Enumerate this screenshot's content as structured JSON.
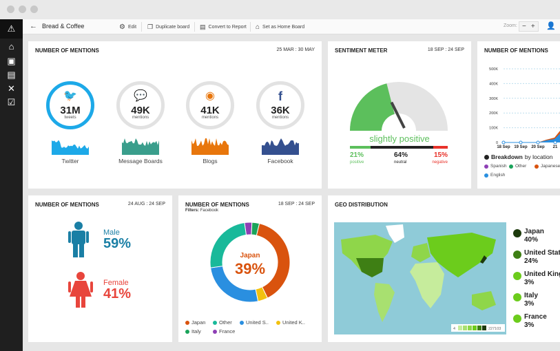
{
  "toolbar": {
    "back": "←",
    "title": "Bread & Coffee",
    "edit": "Edit",
    "duplicate": "Duplicate board",
    "convert": "Convert to Report",
    "home": "Set as Home Board",
    "zoom_label": "Zoom:",
    "zoom_out": "−",
    "zoom_in": "+"
  },
  "mentions": {
    "title": "NUMBER OF MENTIONS",
    "date": "25 MAR : 30 MAY",
    "channels": [
      {
        "name": "Twitter",
        "value": "31M",
        "unit": "tweets",
        "color": "#1da9e8",
        "icon": "twitter-icon"
      },
      {
        "name": "Message Boards",
        "value": "49K",
        "unit": "mentions",
        "color": "#3a9e8c",
        "icon": "speech-bubble-icon"
      },
      {
        "name": "Blogs",
        "value": "41K",
        "unit": "mentions",
        "color": "#e8760c",
        "icon": "rss-icon"
      },
      {
        "name": "Facebook",
        "value": "36K",
        "unit": "mentions",
        "color": "#34508f",
        "icon": "facebook-icon"
      }
    ]
  },
  "sentiment": {
    "title": "SENTIMENT METER",
    "date": "18 SEP : 24 SEP",
    "verdict": "slightly positive",
    "positive": {
      "pct": "21%",
      "label": "positive",
      "value": 21
    },
    "neutral": {
      "pct": "64%",
      "label": "neutral",
      "value": 64
    },
    "negative": {
      "pct": "15%",
      "label": "negative",
      "value": 15
    },
    "colors": {
      "positive": "#5cbf5c",
      "neutral": "#222222",
      "negative": "#e8322a"
    }
  },
  "timeline": {
    "title": "NUMBER OF MENTIONS",
    "yticks": [
      "500K",
      "400K",
      "300K",
      "200K",
      "100K",
      "0"
    ],
    "xticks": [
      "18 Sep",
      "19 Sep",
      "20 Sep",
      "21"
    ],
    "breakdown_bold": "Breakdown",
    "breakdown_rest": " by location",
    "legend": [
      {
        "name": "Spanish",
        "color": "#8e3fb5"
      },
      {
        "name": "Other",
        "color": "#1aa35a"
      },
      {
        "name": "Japanese",
        "color": "#d9530e"
      },
      {
        "name": "English",
        "color": "#2a8fe0"
      }
    ]
  },
  "gender": {
    "title": "NUMBER OF MENTIONS",
    "date": "24 AUG : 24 SEP",
    "male_label": "Male",
    "male_pct": "59%",
    "female_label": "Female",
    "female_pct": "41%",
    "male_color": "#1a7fa5",
    "female_color": "#e8453c"
  },
  "donut": {
    "title": "NUMBER OF MENTIONS",
    "date": "18 SEP : 24 SEP",
    "filter_label": "Filters:",
    "filter_value": "Facebook",
    "center_label": "Japan",
    "center_pct": "39%",
    "chart_data": {
      "type": "pie",
      "slices": [
        {
          "name": "France",
          "value": 3,
          "color": "#8e3fb5"
        },
        {
          "name": "Italy",
          "value": 3,
          "color": "#1aa35a"
        },
        {
          "name": "Japan",
          "value": 39,
          "color": "#d9530e"
        },
        {
          "name": "United K..",
          "value": 4,
          "color": "#f2c10f"
        },
        {
          "name": "United S..",
          "value": 26,
          "color": "#2a8fe0"
        },
        {
          "name": "Other",
          "value": 25,
          "color": "#19b99a"
        }
      ]
    },
    "legend_order": [
      "Japan",
      "Other",
      "United S..",
      "United K..",
      "Italy",
      "France"
    ]
  },
  "geo": {
    "title": "GEO DISTRIBUTION",
    "scale_min": "4",
    "scale_max": "227103",
    "legend": [
      {
        "name": "Japan",
        "pct": "40%",
        "color": "#1d3a0c"
      },
      {
        "name": "United States",
        "pct": "24%",
        "color": "#3e7f14"
      },
      {
        "name": "United Kingdom",
        "pct": "3%",
        "color": "#6ccc1c"
      },
      {
        "name": "Italy",
        "pct": "3%",
        "color": "#6ccc1c"
      },
      {
        "name": "France",
        "pct": "3%",
        "color": "#6ccc1c"
      }
    ]
  }
}
